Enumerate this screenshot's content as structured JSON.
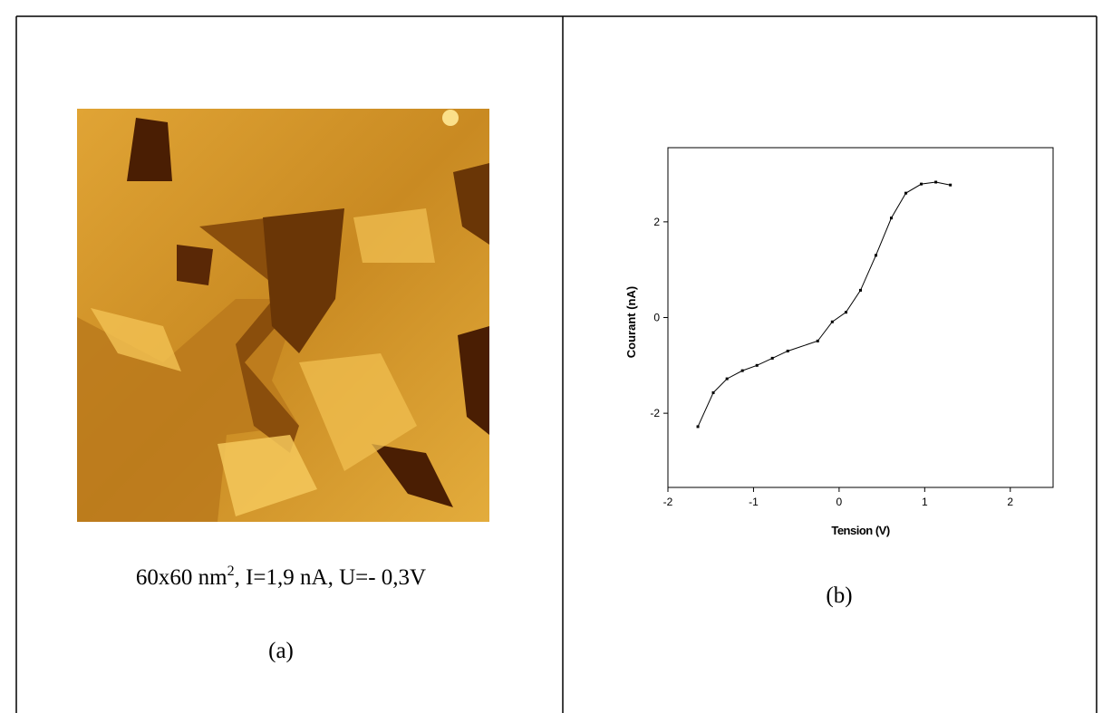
{
  "panel_a": {
    "caption": [
      "60x60 nm",
      "2",
      ",  I=1,9 nA, U=- 0,3V"
    ],
    "label": "(a)"
  },
  "panel_b": {
    "label": "(b)"
  },
  "chart_data": {
    "type": "line",
    "x_label": "Tension (V)",
    "y_label": "Courant (nA)",
    "color": "#000000",
    "x": [
      -1.65,
      -1.47,
      -1.31,
      -1.13,
      -0.96,
      -0.78,
      -0.6,
      -0.25,
      -0.08,
      0.08,
      0.25,
      0.43,
      0.61,
      0.78,
      0.96,
      1.13,
      1.3
    ],
    "values": [
      -2.28,
      -1.57,
      -1.28,
      -1.11,
      -1.0,
      -0.85,
      -0.7,
      -0.49,
      -0.09,
      0.11,
      0.57,
      1.3,
      2.08,
      2.6,
      2.79,
      2.83,
      2.77
    ],
    "xlim": [
      -2,
      2.5
    ],
    "ylim": [
      -3.55,
      3.55
    ],
    "xticks": [
      -2,
      -1,
      0,
      1,
      2
    ],
    "yticks": [
      -2,
      0,
      2
    ]
  }
}
